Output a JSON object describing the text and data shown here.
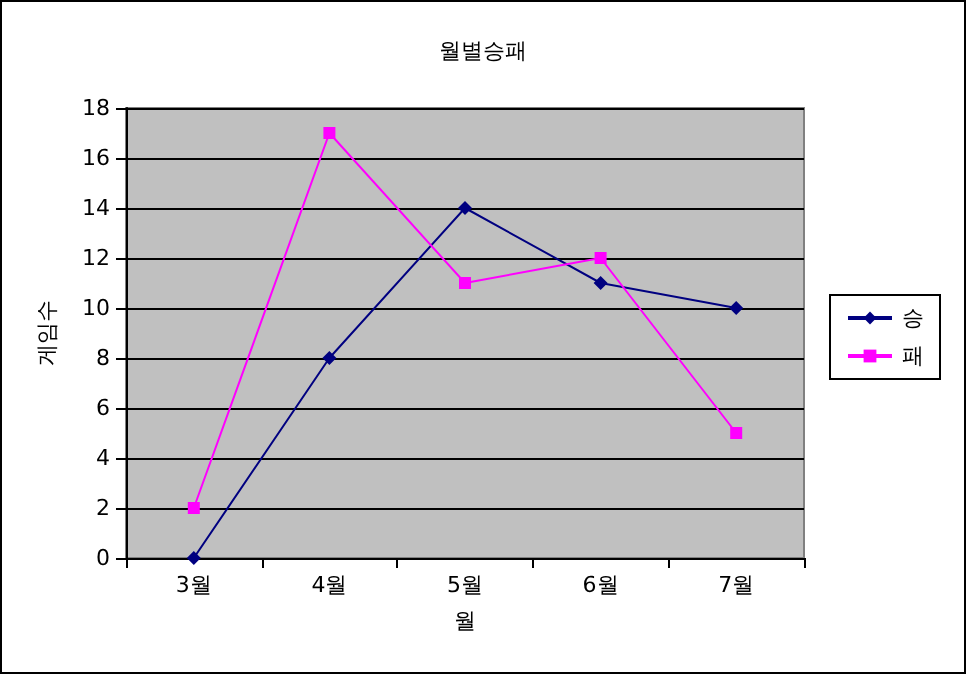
{
  "chart_data": {
    "type": "line",
    "title": "월별승패",
    "xlabel": "월",
    "ylabel": "게임수",
    "categories": [
      "3월",
      "4월",
      "5월",
      "6월",
      "7월"
    ],
    "series": [
      {
        "name": "승",
        "color": "#000080",
        "marker": "diamond",
        "values": [
          0,
          8,
          14,
          11,
          10
        ]
      },
      {
        "name": "패",
        "color": "#ff00ff",
        "marker": "square",
        "values": [
          2,
          17,
          11,
          12,
          5
        ]
      }
    ],
    "ylim": [
      0,
      18
    ],
    "yticks": [
      0,
      2,
      4,
      6,
      8,
      10,
      12,
      14,
      16,
      18
    ],
    "grid": "y",
    "legend": "right",
    "line_style": "solid"
  }
}
